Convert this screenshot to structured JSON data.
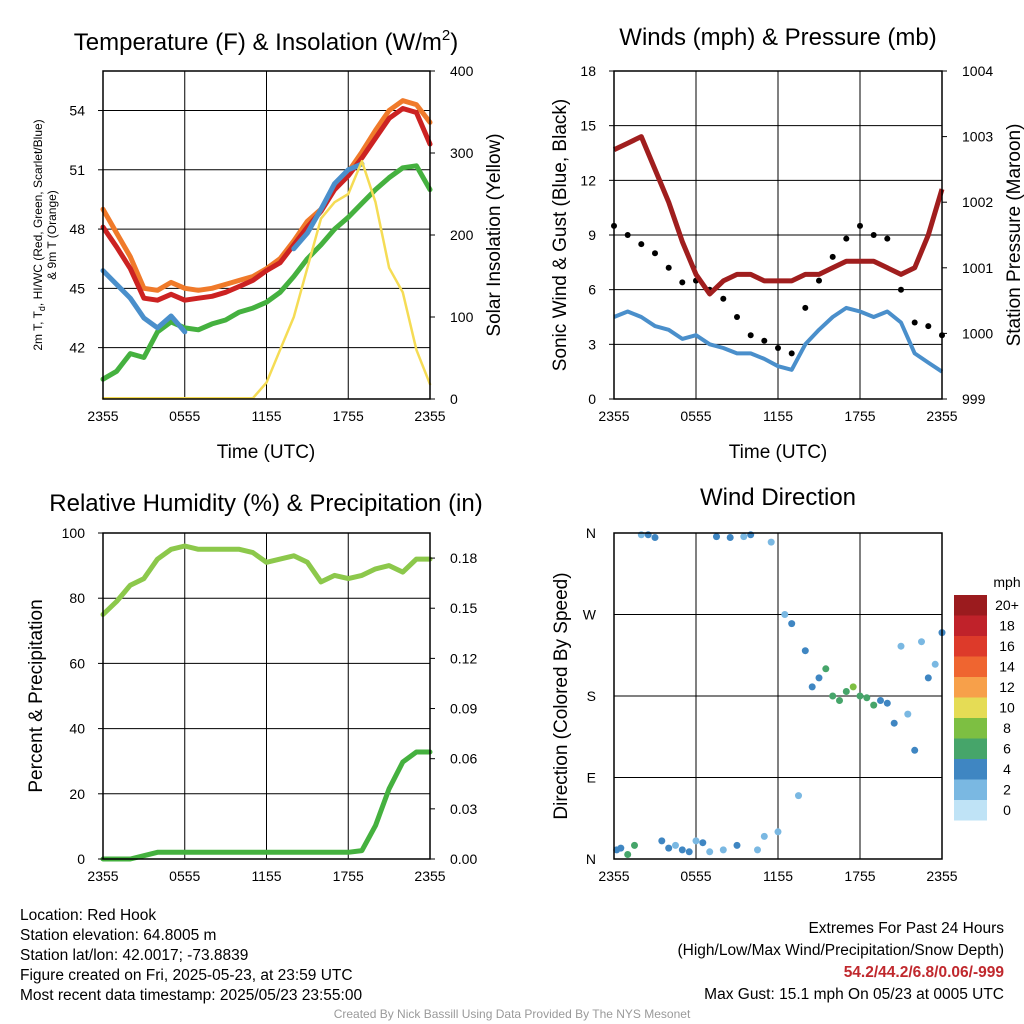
{
  "panels": {
    "temperature": {
      "title": "Temperature (F) & Insolation (W/m",
      "title_sup": "2",
      "title_close": ")",
      "ylabel_left_lines": [
        "2m T, T",
        "d",
        ", HI/WC (Red, Green, Scarlet/Blue)",
        "& 9m T (Orange)"
      ],
      "ylabel_right": "Solar Insolation (Yellow)",
      "xlabel": "Time (UTC)"
    },
    "winds": {
      "title": "Winds (mph) & Pressure (mb)",
      "ylabel_left": "Sonic Wind & Gust (Blue, Black)",
      "ylabel_right": "Station Pressure (Maroon)",
      "xlabel": "Time (UTC)"
    },
    "humidity": {
      "title": "Relative Humidity (%) & Precipitation (in)",
      "ylabel_left": "Percent & Precipitation"
    },
    "direction": {
      "title": "Wind Direction",
      "ylabel_left": "Direction (Colored By Speed)",
      "colorbar_title": "mph",
      "colorbar_labels": [
        "20+",
        "18",
        "16",
        "14",
        "12",
        "10",
        "8",
        "6",
        "4",
        "2",
        "0"
      ],
      "colorbar_colors": [
        "#9b1b1e",
        "#c0222a",
        "#dd3a2a",
        "#ef6530",
        "#f7a04a",
        "#e5dc55",
        "#7dbf42",
        "#46a56a",
        "#3f86c2",
        "#7ab8e2",
        "#bfe3f6"
      ]
    }
  },
  "chart_data": [
    {
      "type": "line",
      "title": "Temperature (F) & Insolation (W/m2)",
      "xlabel": "Time (UTC)",
      "ylabel": "2m T, Td, HI/WC (Red, Green, Scarlet/Blue) & 9m T (Orange)",
      "ylabel_right": "Solar Insolation (Yellow)",
      "x_ticks": [
        "2355",
        "0555",
        "1155",
        "1755",
        "2355"
      ],
      "y_ticks": [
        42,
        45,
        48,
        51,
        54
      ],
      "y_right_ticks": [
        0,
        100,
        200,
        300,
        400
      ],
      "ylim": [
        39.4,
        56.0
      ],
      "ylim_right": [
        0,
        400
      ],
      "x_hours": [
        0,
        1,
        2,
        3,
        4,
        5,
        6,
        7,
        8,
        9,
        10,
        11,
        12,
        13,
        14,
        15,
        16,
        17,
        18,
        19,
        20,
        21,
        22,
        23,
        24
      ],
      "series": [
        {
          "name": "9m T",
          "color": "#f07a2a",
          "axis": "left",
          "values": [
            49.0,
            47.8,
            46.6,
            45.0,
            44.9,
            45.3,
            45.0,
            44.9,
            45.0,
            45.2,
            45.4,
            45.6,
            46.0,
            46.5,
            47.4,
            48.4,
            49.0,
            50.2,
            50.9,
            51.9,
            53.0,
            54.0,
            54.5,
            54.3,
            53.4
          ]
        },
        {
          "name": "2m T",
          "color": "#cc2222",
          "axis": "left",
          "values": [
            48.1,
            47.1,
            46.0,
            44.5,
            44.4,
            44.7,
            44.4,
            44.5,
            44.6,
            44.8,
            45.1,
            45.4,
            45.9,
            46.3,
            47.2,
            48.1,
            48.9,
            50.0,
            50.7,
            51.6,
            52.6,
            53.6,
            54.1,
            53.9,
            52.3
          ]
        },
        {
          "name": "Td",
          "color": "#45b13f",
          "axis": "left",
          "values": [
            40.4,
            40.8,
            41.7,
            41.5,
            42.8,
            43.3,
            43.0,
            42.9,
            43.2,
            43.4,
            43.8,
            44.0,
            44.3,
            44.8,
            45.6,
            46.5,
            47.2,
            48.0,
            48.6,
            49.3,
            50.0,
            50.6,
            51.1,
            51.2,
            50.0
          ]
        },
        {
          "name": "HI/WC",
          "color": "#4a8fcb",
          "axis": "left",
          "values": [
            45.9,
            45.2,
            44.5,
            43.5,
            43.0,
            43.6,
            42.8,
            null,
            null,
            null,
            null,
            null,
            null,
            null,
            47.0,
            47.8,
            49.0,
            50.3,
            51.0,
            51.3,
            null,
            null,
            null,
            null,
            null
          ]
        },
        {
          "name": "Solar Insolation",
          "color": "#f5dc55",
          "axis": "right",
          "values": [
            1,
            1,
            1,
            1,
            1,
            1,
            1,
            1,
            1,
            1,
            1,
            1,
            20,
            60,
            100,
            160,
            220,
            240,
            250,
            290,
            240,
            160,
            130,
            60,
            18
          ]
        }
      ]
    },
    {
      "type": "scatter",
      "title": "Winds (mph) & Pressure (mb)",
      "xlabel": "Time (UTC)",
      "ylabel": "Sonic Wind & Gust (Blue, Black)",
      "ylabel_right": "Station Pressure (Maroon)",
      "x_ticks": [
        "2355",
        "0555",
        "1155",
        "1755",
        "2355"
      ],
      "y_ticks": [
        0,
        3,
        6,
        9,
        12,
        15,
        18
      ],
      "y_right_ticks": [
        999,
        1000,
        1001,
        1002,
        1003,
        1004
      ],
      "ylim": [
        0,
        18
      ],
      "ylim_right": [
        999,
        1004
      ],
      "x_hours": [
        0,
        1,
        2,
        3,
        4,
        5,
        6,
        7,
        8,
        9,
        10,
        11,
        12,
        13,
        14,
        15,
        16,
        17,
        18,
        19,
        20,
        21,
        22,
        23,
        24
      ],
      "series": [
        {
          "name": "Sonic Wind",
          "color": "#4a8fcb",
          "values": [
            4.5,
            4.8,
            4.5,
            4.0,
            3.8,
            3.3,
            3.5,
            3.0,
            2.8,
            2.5,
            2.5,
            2.2,
            1.8,
            1.6,
            3.0,
            3.8,
            4.5,
            5.0,
            4.8,
            4.5,
            4.8,
            4.2,
            2.5,
            2.0,
            1.5
          ]
        },
        {
          "name": "Gust",
          "color": "#000000",
          "values": [
            9.5,
            9.0,
            8.5,
            8.0,
            7.2,
            6.4,
            6.5,
            6.0,
            5.5,
            4.5,
            3.5,
            3.2,
            2.8,
            2.5,
            5.0,
            6.5,
            7.8,
            8.8,
            9.5,
            9.0,
            8.8,
            6.0,
            4.2,
            4.0,
            3.5
          ],
          "max_gust": 15.1
        },
        {
          "name": "Station Pressure",
          "color": "#a01e1e",
          "axis": "right",
          "values": [
            1002.8,
            1002.9,
            1003.0,
            1002.5,
            1002.0,
            1001.4,
            1000.9,
            1000.6,
            1000.8,
            1000.9,
            1000.9,
            1000.8,
            1000.8,
            1000.8,
            1000.9,
            1000.9,
            1001.0,
            1001.1,
            1001.1,
            1001.1,
            1001.0,
            1000.9,
            1001.0,
            1001.5,
            1002.2
          ]
        }
      ]
    },
    {
      "type": "line",
      "title": "Relative Humidity (%) & Precipitation (in)",
      "xlabel": "",
      "ylabel": "Percent & Precipitation",
      "x_ticks": [
        "2355",
        "0555",
        "1155",
        "1755",
        "2355"
      ],
      "y_ticks": [
        0,
        20,
        40,
        60,
        80,
        100
      ],
      "y_right_ticks": [
        0.0,
        0.03,
        0.06,
        0.09,
        0.12,
        0.15,
        0.18
      ],
      "ylim": [
        0,
        100
      ],
      "ylim_right": [
        0,
        0.195
      ],
      "x_hours": [
        0,
        1,
        2,
        3,
        4,
        5,
        6,
        7,
        8,
        9,
        10,
        11,
        12,
        13,
        14,
        15,
        16,
        17,
        18,
        19,
        20,
        21,
        22,
        23,
        24
      ],
      "series": [
        {
          "name": "Relative Humidity",
          "color": "#8cc84b",
          "axis": "left",
          "values": [
            75,
            79,
            84,
            86,
            92,
            95,
            96,
            95,
            95,
            95,
            95,
            94,
            91,
            92,
            93,
            91,
            85,
            87,
            86,
            87,
            89,
            90,
            88,
            92,
            92
          ]
        },
        {
          "name": "Precipitation",
          "color": "#45b13f",
          "axis": "right",
          "values": [
            0,
            0,
            0,
            0.002,
            0.004,
            0.004,
            0.004,
            0.004,
            0.004,
            0.004,
            0.004,
            0.004,
            0.004,
            0.004,
            0.004,
            0.004,
            0.004,
            0.004,
            0.004,
            0.005,
            0.02,
            0.042,
            0.058,
            0.064,
            0.064
          ]
        }
      ]
    },
    {
      "type": "scatter",
      "title": "Wind Direction",
      "xlabel": "",
      "ylabel": "Direction (Colored By Speed)",
      "x_ticks": [
        "2355",
        "0555",
        "1155",
        "1755",
        "2355"
      ],
      "y_ticks": [
        "N",
        "E",
        "S",
        "W",
        "N"
      ],
      "ylim": [
        0,
        360
      ],
      "x_hours": [
        0.2,
        0.5,
        1.0,
        1.5,
        2.0,
        2.5,
        3.0,
        3.5,
        4.0,
        4.5,
        5.0,
        5.5,
        6.0,
        6.5,
        7.0,
        7.5,
        8.0,
        8.5,
        9.0,
        9.5,
        10.0,
        10.5,
        11.0,
        11.5,
        12.0,
        12.5,
        13.0,
        13.5,
        14.0,
        14.5,
        15.0,
        15.5,
        16.0,
        16.5,
        17.0,
        17.5,
        18.0,
        18.5,
        19.0,
        19.5,
        20.0,
        20.5,
        21.0,
        21.5,
        22.0,
        22.5,
        23.0,
        23.5,
        24.0
      ],
      "directions_deg": [
        10,
        12,
        5,
        15,
        358,
        358,
        355,
        20,
        12,
        15,
        10,
        8,
        20,
        18,
        8,
        356,
        10,
        355,
        15,
        356,
        358,
        10,
        25,
        350,
        30,
        270,
        260,
        70,
        230,
        190,
        200,
        210,
        180,
        175,
        185,
        190,
        180,
        178,
        170,
        175,
        172,
        150,
        235,
        160,
        120,
        240,
        200,
        215,
        250
      ],
      "speeds_mph": [
        3,
        4,
        6,
        5,
        2,
        3,
        3,
        4,
        3,
        2,
        3,
        4,
        2,
        3,
        1,
        3,
        2,
        3,
        4,
        2,
        3,
        1,
        2,
        1,
        2,
        2,
        3,
        2,
        4,
        4,
        3,
        5,
        6,
        5,
        6,
        7,
        6,
        5,
        6,
        4,
        3,
        3,
        1,
        2,
        3,
        2,
        3,
        2,
        3
      ]
    }
  ],
  "footer": {
    "location": "Location: Red Hook",
    "elevation": "Station elevation: 64.8005 m",
    "latlon": "Station lat/lon: 42.0017; -73.8839",
    "created": "Figure created on Fri, 2025-05-23, at 23:59 UTC",
    "recent": "Most recent data timestamp: 2025/05/23 23:55:00",
    "extremes_title": "Extremes For Past 24 Hours",
    "extremes_legend": "(High/Low/Max Wind/Precipitation/Snow Depth)",
    "extremes_values": "54.2/44.2/6.8/0.06/-999",
    "max_gust": "Max Gust: 15.1 mph On 05/23 at 0005 UTC",
    "credit": "Created By Nick Bassill Using Data Provided By The NYS Mesonet"
  }
}
